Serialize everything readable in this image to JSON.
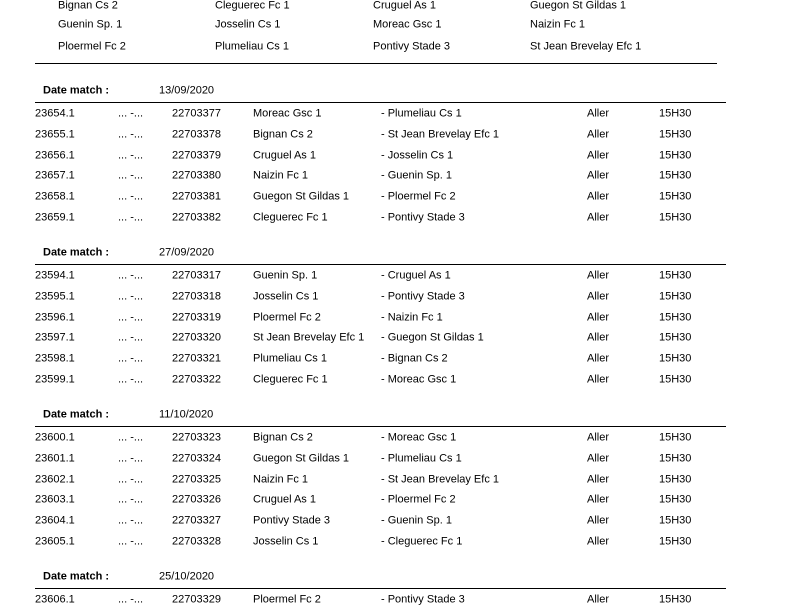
{
  "teams": [
    [
      "Bignan Cs 2",
      "Cleguerec Fc 1",
      "Cruguel As 1",
      "Guegon St Gildas 1"
    ],
    [
      "Guenin Sp. 1",
      "Josselin Cs 1",
      "Moreac Gsc 1",
      "Naizin Fc 1"
    ],
    [
      "Ploermel Fc 2",
      "Plumeliau Cs 1",
      "Pontivy Stade 3",
      "St Jean Brevelay Efc 1"
    ]
  ],
  "sections": [
    {
      "label": "Date match :",
      "date": "13/09/2020",
      "matches": [
        [
          "23654.1",
          "... -...",
          "22703377",
          "Moreac Gsc 1",
          "- Plumeliau Cs 1",
          "Aller",
          "15H30"
        ],
        [
          "23655.1",
          "... -...",
          "22703378",
          "Bignan Cs 2",
          "- St Jean Brevelay Efc 1",
          "Aller",
          "15H30"
        ],
        [
          "23656.1",
          "... -...",
          "22703379",
          "Cruguel As 1",
          "- Josselin Cs 1",
          "Aller",
          "15H30"
        ],
        [
          "23657.1",
          "... -...",
          "22703380",
          "Naizin Fc 1",
          "- Guenin Sp. 1",
          "Aller",
          "15H30"
        ],
        [
          "23658.1",
          "... -...",
          "22703381",
          "Guegon St Gildas 1",
          "- Ploermel Fc 2",
          "Aller",
          "15H30"
        ],
        [
          "23659.1",
          "... -...",
          "22703382",
          "Cleguerec Fc 1",
          "- Pontivy Stade 3",
          "Aller",
          "15H30"
        ]
      ]
    },
    {
      "label": "Date match :",
      "date": "27/09/2020",
      "matches": [
        [
          "23594.1",
          "... -...",
          "22703317",
          "Guenin Sp. 1",
          "- Cruguel As 1",
          "Aller",
          "15H30"
        ],
        [
          "23595.1",
          "... -...",
          "22703318",
          "Josselin Cs 1",
          "- Pontivy Stade 3",
          "Aller",
          "15H30"
        ],
        [
          "23596.1",
          "... -...",
          "22703319",
          "Ploermel Fc 2",
          "- Naizin Fc 1",
          "Aller",
          "15H30"
        ],
        [
          "23597.1",
          "... -...",
          "22703320",
          "St Jean Brevelay Efc 1",
          "- Guegon St Gildas 1",
          "Aller",
          "15H30"
        ],
        [
          "23598.1",
          "... -...",
          "22703321",
          "Plumeliau Cs 1",
          "- Bignan Cs 2",
          "Aller",
          "15H30"
        ],
        [
          "23599.1",
          "... -...",
          "22703322",
          "Cleguerec Fc 1",
          "- Moreac Gsc 1",
          "Aller",
          "15H30"
        ]
      ]
    },
    {
      "label": "Date match :",
      "date": "11/10/2020",
      "matches": [
        [
          "23600.1",
          "... -...",
          "22703323",
          "Bignan Cs 2",
          "- Moreac Gsc 1",
          "Aller",
          "15H30"
        ],
        [
          "23601.1",
          "... -...",
          "22703324",
          "Guegon St Gildas 1",
          "- Plumeliau Cs 1",
          "Aller",
          "15H30"
        ],
        [
          "23602.1",
          "... -...",
          "22703325",
          "Naizin Fc 1",
          "- St Jean Brevelay Efc 1",
          "Aller",
          "15H30"
        ],
        [
          "23603.1",
          "... -...",
          "22703326",
          "Cruguel As 1",
          "- Ploermel Fc 2",
          "Aller",
          "15H30"
        ],
        [
          "23604.1",
          "... -...",
          "22703327",
          "Pontivy Stade 3",
          "- Guenin Sp. 1",
          "Aller",
          "15H30"
        ],
        [
          "23605.1",
          "... -...",
          "22703328",
          "Josselin Cs 1",
          "- Cleguerec Fc 1",
          "Aller",
          "15H30"
        ]
      ]
    },
    {
      "label": "Date match :",
      "date": "25/10/2020",
      "matches": [
        [
          "23606.1",
          "... -...",
          "22703329",
          "Ploermel Fc 2",
          "- Pontivy Stade 3",
          "Aller",
          "15H30"
        ]
      ]
    }
  ]
}
